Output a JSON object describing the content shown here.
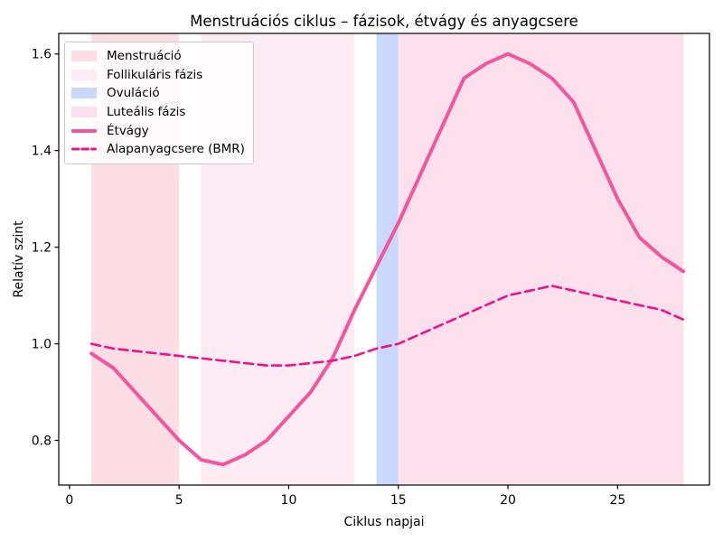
{
  "chart_data": {
    "type": "line",
    "title": "Menstruációs ciklus – fázisok, étvágy és anyagcsere",
    "xlabel": "Ciklus napjai",
    "ylabel": "Relatív szint",
    "xlim": [
      -0.49,
      29.19
    ],
    "ylim": [
      0.7075,
      1.6425
    ],
    "xticks": [
      0,
      5,
      10,
      15,
      20,
      25
    ],
    "yticks": [
      0.8,
      1.0,
      1.2,
      1.4,
      1.6
    ],
    "grid": false,
    "legend_position": "upper-left",
    "x": [
      1,
      2,
      3,
      4,
      5,
      6,
      7,
      8,
      9,
      10,
      11,
      12,
      13,
      14,
      15,
      16,
      17,
      18,
      19,
      20,
      21,
      22,
      23,
      24,
      25,
      26,
      27,
      28
    ],
    "series": [
      {
        "name": "Étvágy",
        "style": "solid",
        "color": "#f4569d",
        "width": 4,
        "values": [
          0.98,
          0.95,
          0.9,
          0.85,
          0.8,
          0.76,
          0.75,
          0.77,
          0.8,
          0.85,
          0.9,
          0.97,
          1.07,
          1.16,
          1.25,
          1.35,
          1.45,
          1.55,
          1.58,
          1.6,
          1.58,
          1.55,
          1.5,
          1.4,
          1.3,
          1.22,
          1.18,
          1.15
        ]
      },
      {
        "name": "Alapanyagcsere (BMR)",
        "style": "dashed",
        "color": "#ee128c",
        "width": 2.6,
        "values": [
          1.0,
          0.99,
          0.985,
          0.98,
          0.975,
          0.97,
          0.965,
          0.96,
          0.955,
          0.955,
          0.96,
          0.965,
          0.975,
          0.99,
          1.0,
          1.02,
          1.04,
          1.06,
          1.08,
          1.1,
          1.11,
          1.12,
          1.11,
          1.1,
          1.09,
          1.08,
          1.07,
          1.05
        ]
      }
    ],
    "bands": [
      {
        "name": "Menstruáció",
        "from": 1,
        "to": 5,
        "color": "#fcdee4"
      },
      {
        "name": "Follikuláris fázis",
        "from": 6,
        "to": 13,
        "color": "#fdecf3"
      },
      {
        "name": "Ovuláció",
        "from": 14,
        "to": 15,
        "color": "#c9d8fb"
      },
      {
        "name": "Luteális fázis",
        "from": 15,
        "to": 28,
        "color": "#fce1ec"
      }
    ],
    "legend": [
      {
        "label": "Menstruáció",
        "swatch": "patch",
        "color": "#fcdee4"
      },
      {
        "label": "Follikuláris fázis",
        "swatch": "patch",
        "color": "#fdecf3"
      },
      {
        "label": "Ovuláció",
        "swatch": "patch",
        "color": "#c9d8fb"
      },
      {
        "label": "Luteális fázis",
        "swatch": "patch",
        "color": "#fce1ec"
      },
      {
        "label": "Étvágy",
        "swatch": "line-solid",
        "color": "#f4569d"
      },
      {
        "label": "Alapanyagcsere (BMR)",
        "swatch": "line-dashed",
        "color": "#ee128c"
      }
    ],
    "axis_color": "#000000"
  }
}
